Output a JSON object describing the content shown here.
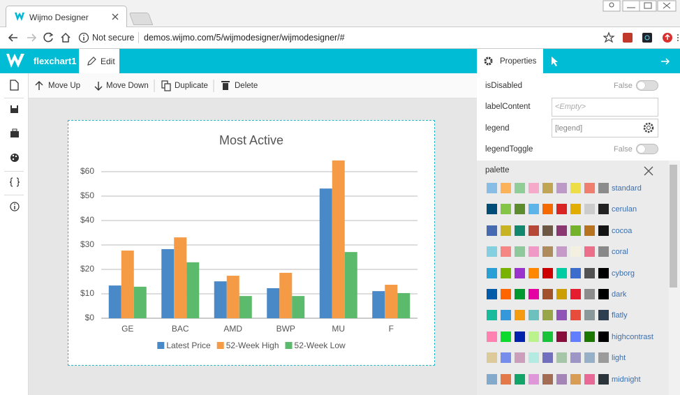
{
  "browser": {
    "tab_title": "Wijmo Designer",
    "security": "Not secure",
    "url": "demos.wijmo.com/5/wijmodesigner/wijmodesigner/#"
  },
  "app": {
    "document_name": "flexchart1",
    "edit_tab": "Edit",
    "properties_tab": "Properties"
  },
  "toolbar": {
    "buttons": [
      "Move Up",
      "Move Down",
      "Duplicate",
      "Delete"
    ]
  },
  "properties": {
    "rows": [
      {
        "name": "isDisabled",
        "value": "False"
      },
      {
        "name": "labelContent",
        "placeholder": "<Empty>"
      },
      {
        "name": "legend",
        "value": "[legend]"
      },
      {
        "name": "legendToggle",
        "value": "False"
      }
    ],
    "palette": {
      "label": "palette",
      "options": [
        {
          "name": "standard",
          "colors": [
            "#88bde6",
            "#fbb258",
            "#90cd97",
            "#f6aac9",
            "#bfa554",
            "#bc99c7",
            "#eddd46",
            "#f07e6e",
            "#8c8c8c"
          ]
        },
        {
          "name": "cerulan",
          "colors": [
            "#004d77",
            "#84c446",
            "#5c8c2e",
            "#5db4e8",
            "#f46a00",
            "#d92424",
            "#e0ad00",
            "#cccccc",
            "#222222"
          ]
        },
        {
          "name": "cocoa",
          "colors": [
            "#466bb0",
            "#c8b422",
            "#14886e",
            "#b54836",
            "#6e5944",
            "#8b3872",
            "#73b22b",
            "#b87320",
            "#141414"
          ]
        },
        {
          "name": "coral",
          "colors": [
            "#84d0e0",
            "#f48784",
            "#8fc99b",
            "#f099c6",
            "#ae8c5d",
            "#c59ac8",
            "#f4f0df",
            "#ec6f8a",
            "#888888"
          ]
        },
        {
          "name": "cyborg",
          "colors": [
            "#2a9fd6",
            "#77b300",
            "#9933cc",
            "#ff8800",
            "#cc0000",
            "#00cca3",
            "#3d6dcc",
            "#525252",
            "#000000"
          ]
        },
        {
          "name": "dark",
          "colors": [
            "#005ca8",
            "#ff6600",
            "#00982f",
            "#e400a2",
            "#a1522a",
            "#cc9e00",
            "#e41d2f",
            "#8c8c8c",
            "#000000"
          ]
        },
        {
          "name": "flatly",
          "colors": [
            "#18bc9c",
            "#3498db",
            "#f39c12",
            "#6cc1be",
            "#99a549",
            "#8f54b5",
            "#e74c3c",
            "#8a9899",
            "#2c3e50"
          ]
        },
        {
          "name": "highcontrast",
          "colors": [
            "#ff82b0",
            "#0dda2c",
            "#0021ab",
            "#bcf28c",
            "#19c23b",
            "#890d3a",
            "#607efd",
            "#1b7700",
            "#000000"
          ]
        },
        {
          "name": "light",
          "colors": [
            "#ddca9a",
            "#778deb",
            "#cb9fbb",
            "#b5eae2",
            "#7270be",
            "#a6c7a7",
            "#9e95c7",
            "#95b0c7",
            "#9b9b9b"
          ]
        },
        {
          "name": "midnight",
          "colors": [
            "#83aaca",
            "#e37849",
            "#14a46a",
            "#e097da",
            "#a26d54",
            "#a584b7",
            "#d89c54",
            "#e86996",
            "#2c343b"
          ]
        }
      ]
    }
  },
  "chart_data": {
    "type": "bar",
    "title": "Most Active",
    "categories": [
      "GE",
      "BAC",
      "AMD",
      "BWP",
      "MU",
      "F"
    ],
    "series": [
      {
        "name": "Latest Price",
        "color": "#4a89c8",
        "values": [
          13.4,
          28.3,
          15.1,
          12.3,
          53.1,
          11.1
        ]
      },
      {
        "name": "52-Week High",
        "color": "#f59a45",
        "values": [
          27.7,
          33.1,
          17.4,
          18.6,
          64.6,
          13.7
        ]
      },
      {
        "name": "52-Week Low",
        "color": "#5cba6c",
        "values": [
          12.9,
          22.9,
          9.1,
          9.1,
          27.1,
          10.3
        ]
      }
    ],
    "ylim": [
      0,
      66
    ],
    "yticks": [
      {
        "value": 0,
        "label": "$0"
      },
      {
        "value": 10,
        "label": "$10"
      },
      {
        "value": 20,
        "label": "$20"
      },
      {
        "value": 30,
        "label": "$30"
      },
      {
        "value": 40,
        "label": "$40"
      },
      {
        "value": 50,
        "label": "$50"
      },
      {
        "value": 60,
        "label": "$60"
      }
    ],
    "grid": true
  }
}
